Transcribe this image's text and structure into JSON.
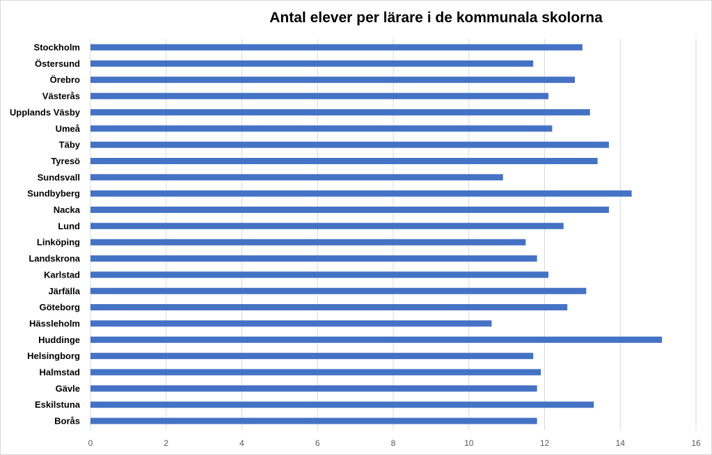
{
  "chart_data": {
    "type": "bar",
    "orientation": "horizontal",
    "title": "Antal elever per lärare i de kommunala skolorna",
    "xlabel": "",
    "ylabel": "",
    "xlim": [
      0,
      16
    ],
    "x_ticks": [
      0,
      2,
      4,
      6,
      8,
      10,
      12,
      14,
      16
    ],
    "grid": true,
    "bar_color": "#4472c4",
    "grid_color": "#d9d9d9",
    "categories": [
      "Stockholm",
      "Östersund",
      "Örebro",
      "Västerås",
      "Upplands Väsby",
      "Umeå",
      "Täby",
      "Tyresö",
      "Sundsvall",
      "Sundbyberg",
      "Nacka",
      "Lund",
      "Linköping",
      "Landskrona",
      "Karlstad",
      "Järfälla",
      "Göteborg",
      "Hässleholm",
      "Huddinge",
      "Helsingborg",
      "Halmstad",
      "Gävle",
      "Eskilstuna",
      "Borås"
    ],
    "values": [
      13.0,
      11.7,
      12.8,
      12.1,
      13.2,
      12.2,
      13.7,
      13.4,
      10.9,
      14.3,
      13.7,
      12.5,
      11.5,
      11.8,
      12.1,
      13.1,
      12.6,
      10.6,
      15.1,
      11.7,
      11.9,
      11.8,
      13.3,
      11.8
    ]
  }
}
